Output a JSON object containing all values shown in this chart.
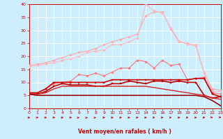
{
  "x": [
    0,
    1,
    2,
    3,
    4,
    5,
    6,
    7,
    8,
    9,
    10,
    11,
    12,
    13,
    14,
    15,
    16,
    17,
    18,
    19,
    20,
    21,
    22,
    23
  ],
  "series": [
    {
      "color": "#ffaaaa",
      "lw": 0.8,
      "marker": "D",
      "ms": 1.8,
      "y": [
        16.5,
        17.0,
        17.5,
        18.5,
        19.5,
        20.5,
        21.5,
        22.0,
        23.0,
        24.5,
        25.5,
        26.5,
        27.5,
        28.5,
        35.5,
        37.0,
        37.0,
        30.5,
        25.5,
        25.0,
        24.0,
        13.5,
        7.5,
        7.0
      ]
    },
    {
      "color": "#ffbbbb",
      "lw": 0.8,
      "marker": "D",
      "ms": 1.8,
      "y": [
        16.0,
        16.5,
        17.0,
        17.5,
        18.5,
        19.0,
        20.0,
        21.5,
        22.0,
        22.5,
        24.5,
        24.5,
        25.5,
        27.0,
        40.0,
        37.5,
        36.5,
        31.0,
        26.0,
        24.5,
        24.5,
        14.0,
        6.5,
        6.5
      ]
    },
    {
      "color": "#ff7777",
      "lw": 0.8,
      "marker": "D",
      "ms": 1.8,
      "y": [
        6.0,
        6.0,
        7.5,
        9.5,
        10.0,
        10.5,
        13.0,
        12.5,
        13.5,
        12.5,
        14.0,
        15.5,
        15.5,
        18.5,
        18.0,
        15.5,
        18.5,
        16.5,
        17.0,
        11.0,
        11.5,
        12.0,
        6.0,
        5.5
      ]
    },
    {
      "color": "#cc0000",
      "lw": 1.2,
      "marker": "s",
      "ms": 2.0,
      "y": [
        6.0,
        6.0,
        7.5,
        10.0,
        10.0,
        10.0,
        10.0,
        10.0,
        10.0,
        10.0,
        11.0,
        11.0,
        11.0,
        11.0,
        11.0,
        11.0,
        11.0,
        11.0,
        11.0,
        11.0,
        11.5,
        11.5,
        5.5,
        4.5
      ]
    },
    {
      "color": "#bb0000",
      "lw": 1.2,
      "marker": "s",
      "ms": 2.0,
      "y": [
        5.5,
        5.5,
        6.5,
        8.5,
        9.5,
        9.0,
        9.0,
        9.0,
        8.5,
        8.5,
        9.5,
        9.5,
        10.5,
        10.0,
        9.5,
        10.5,
        10.5,
        10.0,
        10.5,
        10.0,
        10.0,
        5.0,
        4.0,
        4.5
      ]
    },
    {
      "color": "#dd2222",
      "lw": 1.0,
      "marker": null,
      "ms": 0,
      "y": [
        5.5,
        5.5,
        6.0,
        7.5,
        8.5,
        8.5,
        8.5,
        8.5,
        8.5,
        8.5,
        8.5,
        8.5,
        8.5,
        8.5,
        8.5,
        8.0,
        7.5,
        7.0,
        6.5,
        6.0,
        5.5,
        5.0,
        4.0,
        3.5
      ]
    },
    {
      "color": "#990000",
      "lw": 1.2,
      "marker": null,
      "ms": 0,
      "y": [
        5.5,
        5.0,
        5.0,
        5.0,
        5.0,
        5.0,
        5.0,
        5.0,
        5.0,
        5.0,
        5.0,
        5.0,
        5.0,
        5.0,
        5.0,
        5.0,
        5.0,
        5.0,
        5.0,
        5.0,
        5.0,
        4.5,
        3.0,
        1.0
      ]
    }
  ],
  "arrow_dirs": [
    0,
    0,
    0,
    0,
    0,
    0,
    45,
    45,
    45,
    0,
    0,
    0,
    0,
    0,
    0,
    -20,
    -20,
    -20,
    0,
    -20,
    0,
    0,
    -45,
    -45
  ],
  "xlabel": "Vent moyen/en rafales ( km/h )",
  "xlim": [
    0,
    23
  ],
  "ylim": [
    0,
    40
  ],
  "yticks": [
    0,
    5,
    10,
    15,
    20,
    25,
    30,
    35,
    40
  ],
  "xticks": [
    0,
    1,
    2,
    3,
    4,
    5,
    6,
    7,
    8,
    9,
    10,
    11,
    12,
    13,
    14,
    15,
    16,
    17,
    18,
    19,
    20,
    21,
    22,
    23
  ],
  "bg_color": "#cceeff",
  "grid_color": "#ffffff",
  "red": "#cc0000"
}
